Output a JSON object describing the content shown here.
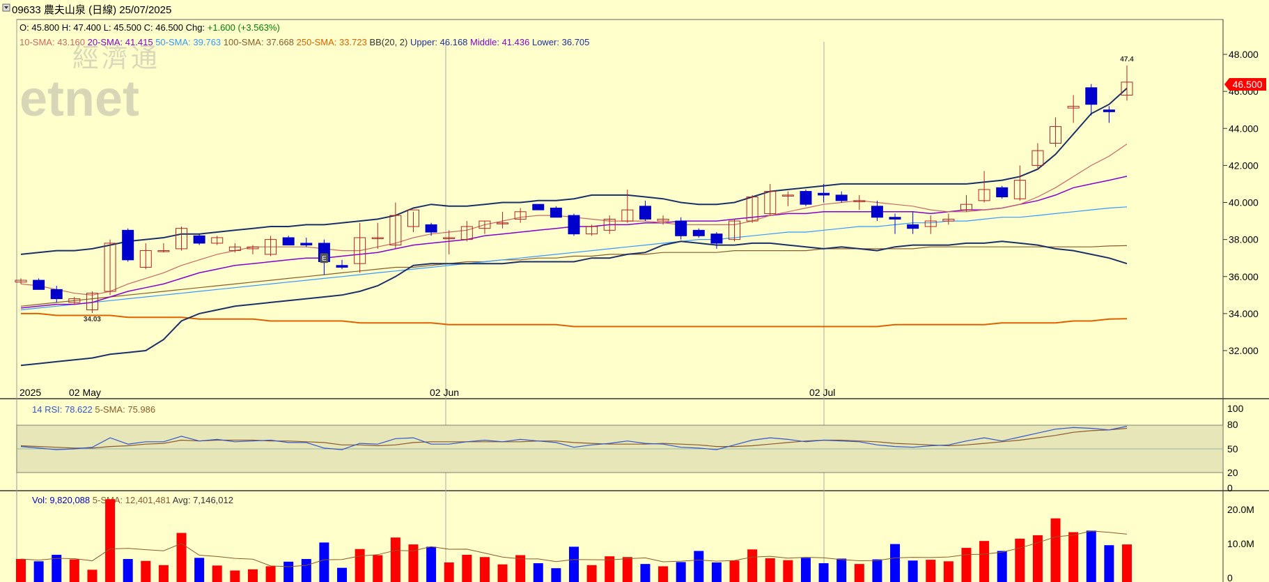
{
  "header": {
    "stock_code": "09633",
    "stock_name": "農夫山泉",
    "period": "(日線)",
    "date": "25/07/2025"
  },
  "watermark": {
    "line1": "經濟通",
    "line2": "etnet"
  },
  "quote": {
    "open_label": "O:",
    "open": "45.800",
    "high_label": "H:",
    "high": "47.400",
    "low_label": "L:",
    "low": "45.500",
    "close_label": "C:",
    "close": "46.500",
    "chg_label": "Chg:",
    "chg": "+1.600 (+3.563%)"
  },
  "indicators": {
    "sma10_label": "10-SMA:",
    "sma10": "43.160",
    "sma20_label": "20-SMA:",
    "sma20": "41.415",
    "sma50_label": "50-SMA:",
    "sma50": "39.763",
    "sma100_label": "100-SMA:",
    "sma100": "37.668",
    "sma250_label": "250-SMA:",
    "sma250": "33.723",
    "bb_label": "BB(20, 2)",
    "upper_label": "Upper:",
    "upper": "46.168",
    "middle_label": "Middle:",
    "middle": "41.436",
    "lower_label": "Lower:",
    "lower": "36.705"
  },
  "price_axis": {
    "ticks": [
      "48.000",
      "46.000",
      "44.000",
      "42.000",
      "40.000",
      "38.000",
      "36.000",
      "34.000",
      "32.000"
    ],
    "last_price": "46.500"
  },
  "date_axis": [
    "2025",
    "02 May",
    "02 Jun",
    "02 Jul"
  ],
  "annotations": {
    "high": "47.4",
    "low": "34.03",
    "earnings_marker": "E"
  },
  "rsi": {
    "label": "14 RSI:",
    "value": "78.622",
    "sma_label": "5-SMA:",
    "sma_value": "75.986",
    "ticks": [
      "100",
      "80",
      "50",
      "20",
      "0"
    ]
  },
  "volume": {
    "label": "Vol:",
    "value": "9,820,088",
    "sma_label": "5-SMA:",
    "sma_value": "12,401,481",
    "avg_label": "Avg:",
    "avg_value": "7,146,012",
    "ticks": [
      "20.0M",
      "10.0M",
      "0"
    ]
  },
  "colors": {
    "background": "#ffffcc",
    "up_candle": "#b22222",
    "down_candle": "#0000cc",
    "bb_band": "#1a2f66",
    "sma10": "#cc6666",
    "sma20": "#8800cc",
    "sma50": "#3399ff",
    "sma100": "#8b5a2b",
    "sma250": "#e06000",
    "volume_up": "#ff0000",
    "volume_down": "#0000ff",
    "rsi_line": "#3355cc",
    "rsi_sma": "#8b5a2b",
    "last_price_box": "#ff0000"
  },
  "chart_data": {
    "type": "candlestick",
    "dates_shown": [
      "2025",
      "02 May",
      "02 Jun",
      "02 Jul"
    ],
    "ylim": [
      30.0,
      49.5
    ],
    "ohlc": [
      [
        35.7,
        35.9,
        35.6,
        35.8
      ],
      [
        35.8,
        35.9,
        35.3,
        35.3
      ],
      [
        35.3,
        35.5,
        34.6,
        34.8
      ],
      [
        34.6,
        34.9,
        34.5,
        34.8
      ],
      [
        34.2,
        35.2,
        34.03,
        35.1
      ],
      [
        35.2,
        38.0,
        35.0,
        37.8
      ],
      [
        38.5,
        38.6,
        36.8,
        36.9
      ],
      [
        36.5,
        37.8,
        36.4,
        37.4
      ],
      [
        37.4,
        37.8,
        37.3,
        37.4
      ],
      [
        37.5,
        38.7,
        37.4,
        38.6
      ],
      [
        38.2,
        38.3,
        37.7,
        37.8
      ],
      [
        37.8,
        38.2,
        37.7,
        38.1
      ],
      [
        37.4,
        37.8,
        37.3,
        37.6
      ],
      [
        37.5,
        37.7,
        37.2,
        37.6
      ],
      [
        37.2,
        38.2,
        37.1,
        38.0
      ],
      [
        38.1,
        38.2,
        37.7,
        37.7
      ],
      [
        37.8,
        38.1,
        37.6,
        37.7
      ],
      [
        37.8,
        38.0,
        36.1,
        36.8
      ],
      [
        36.6,
        36.9,
        36.4,
        36.5
      ],
      [
        36.7,
        38.9,
        36.2,
        38.1
      ],
      [
        38.1,
        38.9,
        37.5,
        38.1
      ],
      [
        37.7,
        40.0,
        37.5,
        39.3
      ],
      [
        38.7,
        39.5,
        38.4,
        39.6
      ],
      [
        38.8,
        38.9,
        38.2,
        38.4
      ],
      [
        38.1,
        38.5,
        37.2,
        38.1
      ],
      [
        38.0,
        39.0,
        37.9,
        38.7
      ],
      [
        38.6,
        39.0,
        38.3,
        39.0
      ],
      [
        38.9,
        39.5,
        38.6,
        38.9
      ],
      [
        39.1,
        39.7,
        38.9,
        39.5
      ],
      [
        39.9,
        39.9,
        39.6,
        39.6
      ],
      [
        39.7,
        39.8,
        39.2,
        39.2
      ],
      [
        39.3,
        39.4,
        38.2,
        38.3
      ],
      [
        38.3,
        38.8,
        38.2,
        38.7
      ],
      [
        38.5,
        39.3,
        38.3,
        39.1
      ],
      [
        39.0,
        40.7,
        38.9,
        39.6
      ],
      [
        39.8,
        40.1,
        39.0,
        39.1
      ],
      [
        39.0,
        39.3,
        38.8,
        39.1
      ],
      [
        39.0,
        39.2,
        38.0,
        38.2
      ],
      [
        38.5,
        38.6,
        38.1,
        38.2
      ],
      [
        38.3,
        38.4,
        37.5,
        37.8
      ],
      [
        38.0,
        39.1,
        37.9,
        39.0
      ],
      [
        39.0,
        40.4,
        38.9,
        40.3
      ],
      [
        39.4,
        41.0,
        39.3,
        40.6
      ],
      [
        40.4,
        40.6,
        39.8,
        40.4
      ],
      [
        40.6,
        40.7,
        39.8,
        39.9
      ],
      [
        40.5,
        41.0,
        40.0,
        40.4
      ],
      [
        40.4,
        40.6,
        40.0,
        40.1
      ],
      [
        40.1,
        40.4,
        39.6,
        40.1
      ],
      [
        39.8,
        40.1,
        39.0,
        39.2
      ],
      [
        39.2,
        39.4,
        38.3,
        39.1
      ],
      [
        38.8,
        39.5,
        38.3,
        38.6
      ],
      [
        38.7,
        39.3,
        38.3,
        39.0
      ],
      [
        39.0,
        39.4,
        38.8,
        39.1
      ],
      [
        39.6,
        40.4,
        39.5,
        39.9
      ],
      [
        40.1,
        41.7,
        40.0,
        40.7
      ],
      [
        40.8,
        40.9,
        40.2,
        40.3
      ],
      [
        40.2,
        42.0,
        40.1,
        41.2
      ],
      [
        42.0,
        43.2,
        41.8,
        42.8
      ],
      [
        43.2,
        44.6,
        43.0,
        44.1
      ],
      [
        45.1,
        45.8,
        44.3,
        45.2
      ],
      [
        46.2,
        46.4,
        44.7,
        45.3
      ],
      [
        45.0,
        45.2,
        44.3,
        44.9
      ],
      [
        45.8,
        47.4,
        45.5,
        46.5
      ]
    ],
    "volume_millions": [
      6.0,
      5.4,
      7.1,
      5.9,
      3.2,
      21.6,
      6.0,
      5.5,
      4.4,
      12.8,
      6.3,
      4.3,
      3.0,
      3.3,
      4.1,
      5.3,
      6.0,
      10.3,
      3.7,
      8.6,
      7.0,
      11.6,
      9.8,
      9.2,
      5.1,
      7.1,
      6.5,
      4.6,
      7.0,
      4.9,
      3.6,
      9.2,
      4.4,
      6.7,
      6.5,
      4.7,
      4.1,
      5.2,
      8.1,
      5.1,
      5.6,
      8.5,
      6.2,
      5.7,
      6.3,
      4.9,
      6.1,
      4.7,
      5.9,
      9.9,
      5.6,
      5.8,
      5.4,
      8.9,
      10.7,
      8.1,
      11.3,
      12.2,
      16.6,
      13.0,
      13.4,
      9.6,
      9.8
    ],
    "bb_upper": [
      37.2,
      37.3,
      37.4,
      37.4,
      37.5,
      37.7,
      37.9,
      38.0,
      38.1,
      38.3,
      38.3,
      38.4,
      38.5,
      38.6,
      38.7,
      38.7,
      38.8,
      38.8,
      38.9,
      39.0,
      39.1,
      39.3,
      39.7,
      39.9,
      39.8,
      39.8,
      39.9,
      40.0,
      40.0,
      40.1,
      40.1,
      40.2,
      40.4,
      40.4,
      40.4,
      40.3,
      40.2,
      40.0,
      39.9,
      39.9,
      40.0,
      40.3,
      40.6,
      40.7,
      40.8,
      40.9,
      41.0,
      41.0,
      41.0,
      41.0,
      41.0,
      41.0,
      41.0,
      41.0,
      41.1,
      41.2,
      41.4,
      41.8,
      42.6,
      43.7,
      44.8,
      45.3,
      46.17
    ],
    "bb_lower": [
      31.2,
      31.3,
      31.4,
      31.5,
      31.6,
      31.8,
      31.9,
      32.0,
      32.6,
      33.6,
      34.0,
      34.2,
      34.4,
      34.5,
      34.6,
      34.7,
      34.8,
      34.9,
      35.0,
      35.2,
      35.5,
      36.0,
      36.6,
      36.7,
      36.7,
      36.7,
      36.7,
      36.7,
      36.8,
      36.8,
      36.8,
      36.8,
      37.0,
      37.0,
      37.2,
      37.3,
      37.7,
      37.9,
      37.8,
      37.7,
      37.7,
      37.8,
      37.8,
      37.7,
      37.6,
      37.5,
      37.6,
      37.5,
      37.4,
      37.6,
      37.7,
      37.7,
      37.7,
      37.8,
      37.8,
      37.9,
      37.8,
      37.7,
      37.5,
      37.4,
      37.2,
      37.0,
      36.7
    ],
    "sma10": [
      35.6,
      35.5,
      35.3,
      35.1,
      35.0,
      35.2,
      35.6,
      35.9,
      36.2,
      36.6,
      36.9,
      37.2,
      37.4,
      37.6,
      37.6,
      37.6,
      37.6,
      37.5,
      37.4,
      37.4,
      37.6,
      37.8,
      38.1,
      38.3,
      38.4,
      38.5,
      38.8,
      39.0,
      39.2,
      39.3,
      39.3,
      39.2,
      39.1,
      39.0,
      39.0,
      39.0,
      38.9,
      38.8,
      38.8,
      38.8,
      38.8,
      39.0,
      39.3,
      39.5,
      39.7,
      39.9,
      40.0,
      40.1,
      40.0,
      39.9,
      39.8,
      39.6,
      39.5,
      39.5,
      39.6,
      39.7,
      39.9,
      40.3,
      40.8,
      41.4,
      42.0,
      42.5,
      43.16
    ],
    "sma20": [
      34.3,
      34.4,
      34.5,
      34.5,
      34.6,
      34.9,
      35.2,
      35.4,
      35.6,
      35.9,
      36.2,
      36.4,
      36.6,
      36.7,
      36.8,
      36.9,
      37.0,
      37.0,
      37.1,
      37.2,
      37.3,
      37.5,
      37.7,
      37.8,
      37.9,
      38.0,
      38.2,
      38.3,
      38.4,
      38.5,
      38.6,
      38.7,
      38.7,
      38.8,
      38.8,
      38.9,
      38.9,
      39.0,
      39.0,
      39.0,
      39.1,
      39.2,
      39.3,
      39.4,
      39.4,
      39.5,
      39.5,
      39.5,
      39.5,
      39.5,
      39.5,
      39.4,
      39.5,
      39.6,
      39.6,
      39.7,
      39.9,
      40.1,
      40.4,
      40.8,
      41.0,
      41.2,
      41.415
    ],
    "sma50": [
      34.2,
      34.3,
      34.4,
      34.5,
      34.6,
      34.7,
      34.8,
      34.9,
      35.0,
      35.1,
      35.2,
      35.3,
      35.4,
      35.5,
      35.6,
      35.7,
      35.8,
      35.9,
      36.0,
      36.1,
      36.2,
      36.3,
      36.4,
      36.5,
      36.6,
      36.7,
      36.8,
      36.9,
      37.0,
      37.1,
      37.2,
      37.3,
      37.4,
      37.5,
      37.6,
      37.7,
      37.8,
      37.9,
      38.0,
      38.0,
      38.1,
      38.2,
      38.3,
      38.4,
      38.4,
      38.5,
      38.6,
      38.7,
      38.7,
      38.8,
      38.9,
      38.9,
      39.0,
      39.0,
      39.1,
      39.2,
      39.2,
      39.3,
      39.4,
      39.5,
      39.6,
      39.7,
      39.763
    ],
    "sma100": [
      34.4,
      34.5,
      34.6,
      34.7,
      34.8,
      34.9,
      35.0,
      35.1,
      35.2,
      35.3,
      35.4,
      35.5,
      35.6,
      35.7,
      35.8,
      35.9,
      36.0,
      36.1,
      36.2,
      36.3,
      36.4,
      36.5,
      36.5,
      36.6,
      36.7,
      36.8,
      36.8,
      36.9,
      36.9,
      37.0,
      37.0,
      37.1,
      37.1,
      37.2,
      37.2,
      37.2,
      37.3,
      37.3,
      37.3,
      37.3,
      37.4,
      37.4,
      37.4,
      37.4,
      37.4,
      37.5,
      37.5,
      37.5,
      37.5,
      37.5,
      37.5,
      37.6,
      37.6,
      37.6,
      37.6,
      37.6,
      37.6,
      37.6,
      37.6,
      37.6,
      37.6,
      37.65,
      37.668
    ],
    "sma250": [
      34.0,
      34.0,
      33.9,
      33.9,
      33.9,
      33.9,
      33.8,
      33.8,
      33.8,
      33.8,
      33.7,
      33.7,
      33.7,
      33.7,
      33.6,
      33.6,
      33.6,
      33.6,
      33.6,
      33.5,
      33.5,
      33.5,
      33.5,
      33.5,
      33.4,
      33.4,
      33.4,
      33.4,
      33.4,
      33.4,
      33.4,
      33.3,
      33.3,
      33.3,
      33.3,
      33.3,
      33.3,
      33.3,
      33.3,
      33.3,
      33.3,
      33.3,
      33.3,
      33.3,
      33.3,
      33.3,
      33.3,
      33.3,
      33.3,
      33.4,
      33.4,
      33.4,
      33.4,
      33.4,
      33.4,
      33.5,
      33.5,
      33.5,
      33.5,
      33.6,
      33.6,
      33.7,
      33.723
    ],
    "rsi14": [
      53,
      51,
      49,
      50,
      52,
      64,
      56,
      59,
      59,
      66,
      60,
      62,
      59,
      60,
      61,
      58,
      58,
      51,
      49,
      57,
      56,
      63,
      64,
      56,
      56,
      59,
      61,
      59,
      62,
      60,
      58,
      52,
      55,
      57,
      60,
      57,
      56,
      52,
      51,
      49,
      55,
      61,
      64,
      62,
      59,
      61,
      60,
      59,
      55,
      53,
      52,
      54,
      55,
      60,
      64,
      60,
      65,
      70,
      75,
      77,
      76,
      74,
      78.622
    ],
    "rsi_sma5": [
      54,
      53,
      52,
      51,
      51,
      53,
      54,
      56,
      57,
      61,
      60,
      61,
      61,
      61,
      60,
      60,
      59,
      58,
      55,
      55,
      54,
      55,
      58,
      59,
      59,
      59,
      59,
      59,
      59,
      60,
      60,
      58,
      57,
      56,
      56,
      56,
      57,
      56,
      55,
      53,
      53,
      54,
      56,
      58,
      60,
      61,
      61,
      60,
      59,
      57,
      56,
      55,
      54,
      55,
      57,
      59,
      61,
      64,
      67,
      71,
      73,
      74,
      75.986
    ],
    "rsi_levels": [
      20,
      50,
      80
    ]
  }
}
